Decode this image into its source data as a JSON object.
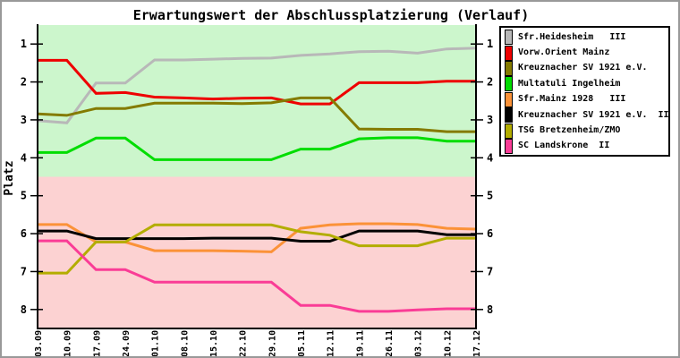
{
  "window": {
    "title": "Erwartungswert der Abschlussplatzierung (Verlauf)"
  },
  "chart_data": {
    "type": "line",
    "title": "Erwartungswert der Abschlussplatzierung (Verlauf)",
    "ylabel": "Platz",
    "xlabel": "",
    "x_labels": [
      "03.09",
      "10.09",
      "17.09",
      "24.09",
      "01.10",
      "08.10",
      "15.10",
      "22.10",
      "29.10",
      "05.11",
      "12.11",
      "19.11",
      "26.11",
      "03.12",
      "10.12",
      "17.12"
    ],
    "yticks": [
      1,
      2,
      3,
      4,
      5,
      6,
      7,
      8
    ],
    "ylim": [
      0.5,
      8.5
    ],
    "y_axis_inverted": true,
    "grid": "off",
    "legend_position": "right",
    "background_zones": [
      {
        "name": "upper-placements",
        "value_range": [
          0.5,
          4.5
        ],
        "color": "#ccf6cc"
      },
      {
        "name": "lower-placements",
        "value_range": [
          4.5,
          8.5
        ],
        "color": "#fcd2d2"
      }
    ],
    "axis_color": "#000000",
    "series": [
      {
        "name": "Sfr.Heidesheim   III",
        "color": "#b8b8b8",
        "values": [
          3.02,
          3.08,
          2.03,
          2.03,
          1.42,
          1.42,
          1.4,
          1.38,
          1.37,
          1.3,
          1.26,
          1.2,
          1.19,
          1.24,
          1.13,
          1.11
        ]
      },
      {
        "name": "Vorw.Orient Mainz",
        "color": "#ee0000",
        "values": [
          1.43,
          1.43,
          2.3,
          2.28,
          2.4,
          2.42,
          2.45,
          2.43,
          2.42,
          2.58,
          2.58,
          2.02,
          2.02,
          2.02,
          1.98,
          1.98
        ]
      },
      {
        "name": "Kreuznacher SV 1921 e.V.",
        "color": "#847b00",
        "values": [
          2.84,
          2.88,
          2.7,
          2.7,
          2.56,
          2.56,
          2.56,
          2.57,
          2.55,
          2.42,
          2.42,
          3.24,
          3.25,
          3.25,
          3.31,
          3.31
        ]
      },
      {
        "name": "Multatuli Ingelheim",
        "color": "#00dd00",
        "values": [
          3.86,
          3.86,
          3.48,
          3.48,
          4.05,
          4.05,
          4.05,
          4.05,
          4.05,
          3.77,
          3.77,
          3.5,
          3.47,
          3.47,
          3.56,
          3.56
        ]
      },
      {
        "name": "Sfr.Mainz 1928   III",
        "color": "#fb9238",
        "values": [
          5.76,
          5.76,
          6.22,
          6.22,
          6.45,
          6.45,
          6.45,
          6.46,
          6.48,
          5.86,
          5.77,
          5.74,
          5.74,
          5.76,
          5.86,
          5.88
        ]
      },
      {
        "name": "Kreuznacher SV 1921 e.V.  II",
        "color": "#000000",
        "values": [
          5.93,
          5.93,
          6.13,
          6.13,
          6.13,
          6.13,
          6.12,
          6.12,
          6.12,
          6.2,
          6.2,
          5.93,
          5.93,
          5.93,
          6.03,
          6.03
        ]
      },
      {
        "name": "TSG Bretzenheim/ZMO",
        "color": "#b3ad00",
        "values": [
          7.04,
          7.04,
          6.22,
          6.22,
          5.77,
          5.77,
          5.77,
          5.77,
          5.77,
          5.95,
          6.04,
          6.32,
          6.32,
          6.32,
          6.12,
          6.12
        ]
      },
      {
        "name": "SC Landskrone  II",
        "color": "#fa3c96",
        "values": [
          6.19,
          6.19,
          6.95,
          6.95,
          7.28,
          7.28,
          7.28,
          7.28,
          7.28,
          7.89,
          7.89,
          8.05,
          8.05,
          8.01,
          7.98,
          7.98
        ]
      }
    ]
  }
}
